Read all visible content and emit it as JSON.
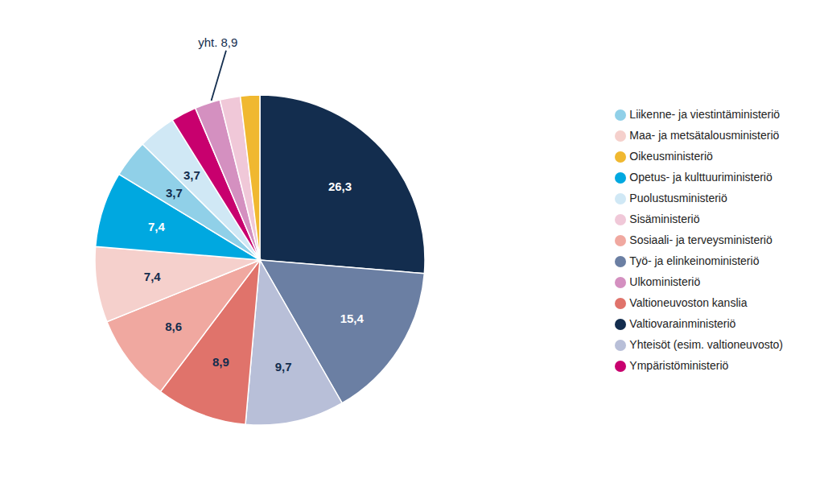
{
  "chart_data": {
    "type": "pie",
    "categories": [
      "Valtiovarainministeriö",
      "Työ- ja elinkeinoministeriö",
      "Yhteisöt (esim. valtioneuvosto)",
      "Valtioneuvoston kanslia",
      "Sosiaali- ja terveysministeriö",
      "Maa- ja metsätalousministeriö",
      "Opetus- ja kulttuuriministeriö",
      "Liikenne- ja viestintäministeriö",
      "Puolustusministeriö",
      "Ympäristöministeriö",
      "Ulkoministeriö",
      "Sisäministeriö",
      "Oikeusministeriö"
    ],
    "values": [
      26.3,
      15.4,
      9.7,
      8.9,
      8.6,
      7.4,
      7.4,
      3.7,
      3.7,
      2.5,
      2.5,
      2.0,
      1.9
    ],
    "value_labels": [
      "26,3",
      "15,4",
      "9,7",
      "8,9",
      "8,6",
      "7,4",
      "7,4",
      "3,7",
      "3,7",
      null,
      null,
      null,
      null
    ],
    "colors": [
      "#132d4e",
      "#6b7fa3",
      "#b8bfd8",
      "#e0736b",
      "#f0a8a0",
      "#f5d0cc",
      "#00a8e0",
      "#90d0e8",
      "#d0e8f5",
      "#c8006e",
      "#d490c0",
      "#f0c8d8",
      "#f0b830"
    ],
    "data_labels": true,
    "legend": "right",
    "annotations": [
      {
        "text": "yht. 8,9",
        "categories": [
          "Ympäristöministeriö",
          "Ulkoministeriö",
          "Sisäministeriö",
          "Oikeusministeriö"
        ]
      }
    ]
  }
}
